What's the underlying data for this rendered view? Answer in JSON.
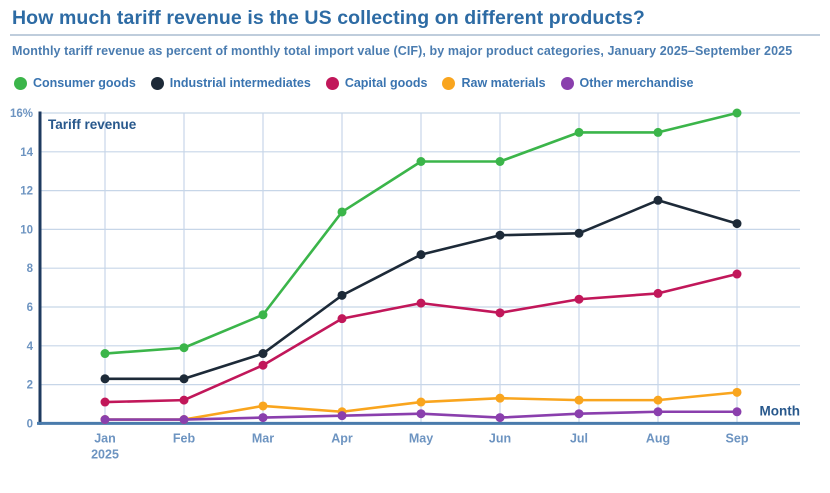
{
  "header": {
    "title": "How much tariff revenue is the US collecting on different products?",
    "subtitle": "Monthly tariff revenue as percent of monthly total import value (CIF), by major product categories, January 2025–September 2025"
  },
  "theme": {
    "title_color": "#2d6ba4",
    "subtitle_color": "#4a7cb0",
    "legend_text_color": "#3a74b0",
    "tick_label_color": "#6d94c1",
    "axis_title_color": "#28588c",
    "grid_color": "#c7d6e8",
    "y_axis_color": "#1e3a5f",
    "x_axis_color": "#4a7bac",
    "divider_color": "#bfcddc",
    "background": "#ffffff"
  },
  "chart_data": {
    "type": "line",
    "title": "How much tariff revenue is the US collecting on different products?",
    "subtitle": "Monthly tariff revenue as percent of monthly total import value (CIF), by major product categories, January 2025–September 2025",
    "unit": "percent of monthly total import value (CIF)",
    "categories": [
      "Jan",
      "Feb",
      "Mar",
      "Apr",
      "May",
      "Jun",
      "Jul",
      "Aug",
      "Sep"
    ],
    "x_first_sublabel": "2025",
    "x_axis_label": "Month",
    "y_axis_label": "Tariff revenue",
    "ylim": [
      0,
      16
    ],
    "y_tick_labels": [
      "0",
      "2",
      "4",
      "6",
      "8",
      "10",
      "12",
      "14",
      "16%"
    ],
    "grid": true,
    "legend_position": "top",
    "series": [
      {
        "name": "Consumer goods",
        "color": "#3bb54a",
        "values": [
          3.6,
          3.9,
          5.6,
          10.9,
          13.5,
          13.5,
          15.0,
          15.0,
          16.0
        ]
      },
      {
        "name": "Industrial intermediates",
        "color": "#1d2a38",
        "values": [
          2.3,
          2.3,
          3.6,
          6.6,
          8.7,
          9.7,
          9.8,
          11.5,
          10.3
        ]
      },
      {
        "name": "Capital goods",
        "color": "#c1175a",
        "values": [
          1.1,
          1.2,
          3.0,
          5.4,
          6.2,
          5.7,
          6.4,
          6.7,
          7.7
        ]
      },
      {
        "name": "Raw materials",
        "color": "#f9a51e",
        "values": [
          0.2,
          0.2,
          0.9,
          0.6,
          1.1,
          1.3,
          1.2,
          1.2,
          1.6
        ]
      },
      {
        "name": "Other merchandise",
        "color": "#8a3fad",
        "values": [
          0.2,
          0.2,
          0.3,
          0.4,
          0.5,
          0.3,
          0.5,
          0.6,
          0.6
        ]
      }
    ]
  }
}
